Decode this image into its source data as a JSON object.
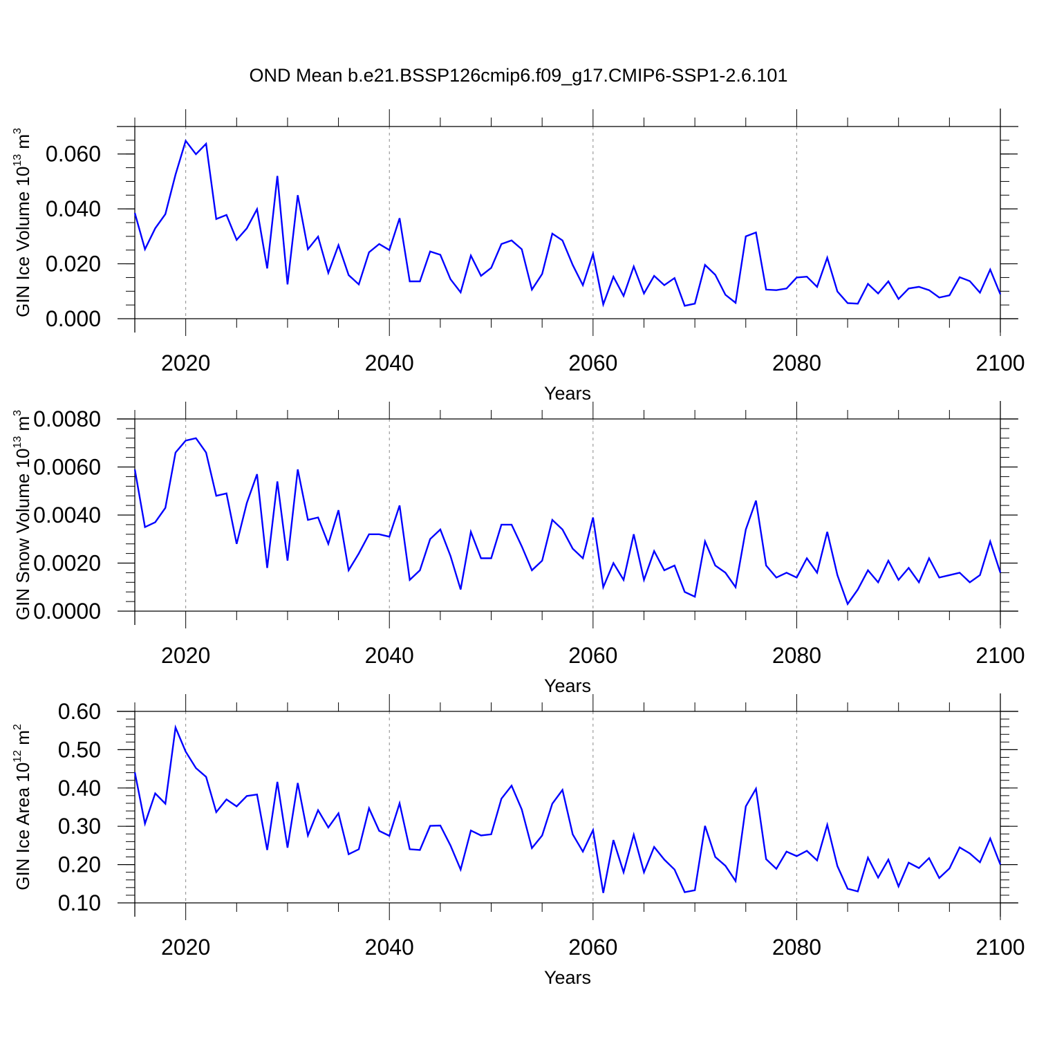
{
  "chart_data": {
    "type": "line",
    "title": "OND Mean b.e21.BSSP126cmip6.f09_g17.CMIP6-SSP1-2.6.101",
    "x": [
      2015,
      2016,
      2017,
      2018,
      2019,
      2020,
      2021,
      2022,
      2023,
      2024,
      2025,
      2026,
      2027,
      2028,
      2029,
      2030,
      2031,
      2032,
      2033,
      2034,
      2035,
      2036,
      2037,
      2038,
      2039,
      2040,
      2041,
      2042,
      2043,
      2044,
      2045,
      2046,
      2047,
      2048,
      2049,
      2050,
      2051,
      2052,
      2053,
      2054,
      2055,
      2056,
      2057,
      2058,
      2059,
      2060,
      2061,
      2062,
      2063,
      2064,
      2065,
      2066,
      2067,
      2068,
      2069,
      2070,
      2071,
      2072,
      2073,
      2074,
      2075,
      2076,
      2077,
      2078,
      2079,
      2080,
      2081,
      2082,
      2083,
      2084,
      2085,
      2086,
      2087,
      2088,
      2089,
      2090,
      2091,
      2092,
      2093,
      2094,
      2095,
      2096,
      2097,
      2098,
      2099,
      2100
    ],
    "xlim": [
      2015,
      2100
    ],
    "xticks": [
      "2020",
      "2040",
      "2060",
      "2080",
      "2100"
    ],
    "panels": [
      {
        "ylabel": "GIN Ice Volume 10",
        "ylabel_exp": "13",
        "ylabel_unit": "m",
        "ylabel_unit_exp": "3",
        "xlabel": "Years",
        "ylim": [
          0,
          0.07
        ],
        "yticks": [
          0,
          0.02,
          0.04,
          0.06
        ],
        "ytick_labels": [
          "0.000",
          "0.020",
          "0.040",
          "0.060"
        ],
        "minor_step": 0.005,
        "series": [
          {
            "name": "GIN Ice Volume",
            "color": "#0000ff",
            "values": [
              0.0385,
              0.0253,
              0.0329,
              0.0381,
              0.0525,
              0.0648,
              0.0599,
              0.0637,
              0.0363,
              0.0378,
              0.0287,
              0.0329,
              0.0399,
              0.0183,
              0.052,
              0.0125,
              0.045,
              0.0253,
              0.0299,
              0.0167,
              0.0268,
              0.0159,
              0.0125,
              0.0242,
              0.0272,
              0.025,
              0.0366,
              0.0136,
              0.0136,
              0.0245,
              0.0233,
              0.0144,
              0.0096,
              0.023,
              0.0156,
              0.0185,
              0.0272,
              0.0285,
              0.0253,
              0.0106,
              0.0163,
              0.031,
              0.0285,
              0.0196,
              0.0122,
              0.0236,
              0.0052,
              0.0153,
              0.0083,
              0.019,
              0.0092,
              0.0156,
              0.0122,
              0.0148,
              0.0047,
              0.0055,
              0.0196,
              0.016,
              0.0087,
              0.0058,
              0.03,
              0.0314,
              0.0106,
              0.0104,
              0.011,
              0.015,
              0.0153,
              0.0116,
              0.0222,
              0.0099,
              0.0057,
              0.0055,
              0.0127,
              0.0092,
              0.0136,
              0.0072,
              0.011,
              0.0116,
              0.0104,
              0.0077,
              0.0085,
              0.0151,
              0.0137,
              0.0095,
              0.0179,
              0.0089
            ]
          }
        ]
      },
      {
        "ylabel": "GIN Snow Volume 10",
        "ylabel_exp": "13",
        "ylabel_unit": "m",
        "ylabel_unit_exp": "3",
        "xlabel": "Years",
        "ylim": [
          0,
          0.008
        ],
        "yticks": [
          0,
          0.002,
          0.004,
          0.006,
          0.008
        ],
        "ytick_labels": [
          "0.0000",
          "0.0020",
          "0.0040",
          "0.0060",
          "0.0080"
        ],
        "minor_step": 0.0004,
        "series": [
          {
            "name": "GIN Snow Volume",
            "color": "#0000ff",
            "values": [
              0.0059,
              0.0035,
              0.0037,
              0.0043,
              0.0066,
              0.0071,
              0.0072,
              0.0066,
              0.0048,
              0.0049,
              0.0028,
              0.0045,
              0.0057,
              0.0018,
              0.0054,
              0.0021,
              0.0059,
              0.0038,
              0.0039,
              0.0028,
              0.0042,
              0.0017,
              0.0024,
              0.0032,
              0.0032,
              0.0031,
              0.0044,
              0.0013,
              0.0017,
              0.003,
              0.0034,
              0.0023,
              0.0009,
              0.0033,
              0.0022,
              0.0022,
              0.0036,
              0.0036,
              0.0027,
              0.0017,
              0.0021,
              0.0038,
              0.0034,
              0.0026,
              0.0022,
              0.0039,
              0.001,
              0.002,
              0.0013,
              0.0032,
              0.0013,
              0.0025,
              0.0017,
              0.0019,
              0.0008,
              0.0006,
              0.0029,
              0.0019,
              0.0016,
              0.001,
              0.0034,
              0.0046,
              0.0019,
              0.0014,
              0.0016,
              0.0014,
              0.0022,
              0.0016,
              0.0033,
              0.0015,
              0.0003,
              0.0009,
              0.0017,
              0.0012,
              0.0021,
              0.0013,
              0.0018,
              0.0012,
              0.0022,
              0.0014,
              0.0015,
              0.0016,
              0.0012,
              0.0015,
              0.0029,
              0.0016
            ]
          }
        ]
      },
      {
        "ylabel": "GIN Ice Area 10",
        "ylabel_exp": "12",
        "ylabel_unit": "m",
        "ylabel_unit_exp": "2",
        "xlabel": "Years",
        "ylim": [
          0.1,
          0.6
        ],
        "yticks": [
          0.1,
          0.2,
          0.3,
          0.4,
          0.5,
          0.6
        ],
        "ytick_labels": [
          "0.10",
          "0.20",
          "0.30",
          "0.40",
          "0.50",
          "0.60"
        ],
        "minor_step": 0.02,
        "series": [
          {
            "name": "GIN Ice Area",
            "color": "#0000ff",
            "values": [
              0.441,
              0.307,
              0.386,
              0.359,
              0.558,
              0.495,
              0.452,
              0.429,
              0.337,
              0.37,
              0.352,
              0.379,
              0.383,
              0.238,
              0.416,
              0.244,
              0.413,
              0.276,
              0.342,
              0.297,
              0.334,
              0.227,
              0.24,
              0.347,
              0.288,
              0.275,
              0.36,
              0.24,
              0.238,
              0.301,
              0.302,
              0.25,
              0.187,
              0.289,
              0.276,
              0.279,
              0.372,
              0.406,
              0.344,
              0.243,
              0.276,
              0.359,
              0.395,
              0.279,
              0.234,
              0.29,
              0.126,
              0.264,
              0.18,
              0.278,
              0.18,
              0.246,
              0.213,
              0.187,
              0.128,
              0.133,
              0.301,
              0.22,
              0.197,
              0.157,
              0.352,
              0.398,
              0.214,
              0.189,
              0.234,
              0.222,
              0.236,
              0.211,
              0.304,
              0.196,
              0.137,
              0.13,
              0.218,
              0.166,
              0.213,
              0.143,
              0.205,
              0.191,
              0.217,
              0.165,
              0.19,
              0.245,
              0.229,
              0.206,
              0.268,
              0.2
            ]
          }
        ]
      }
    ]
  }
}
